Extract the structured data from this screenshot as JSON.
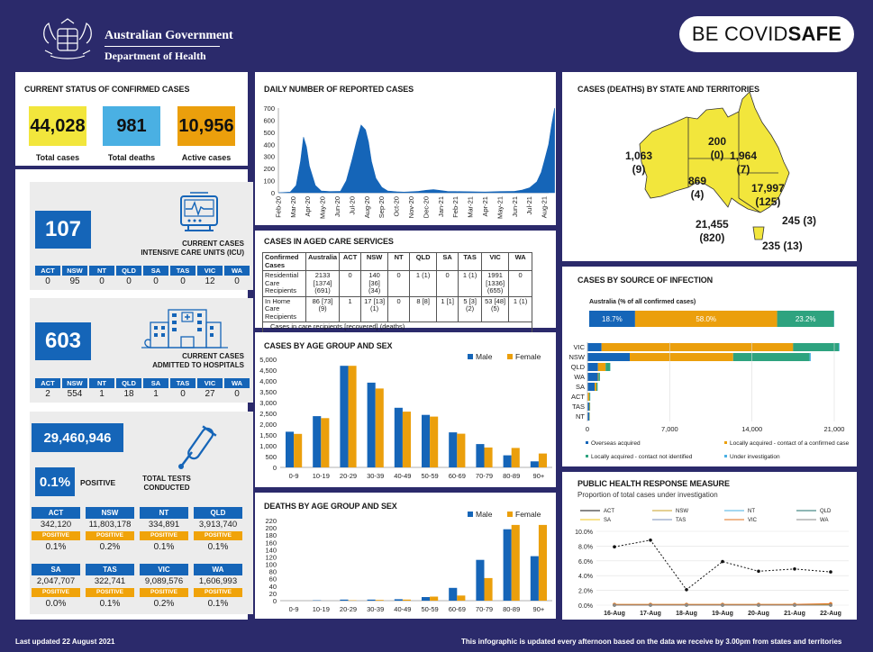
{
  "header": {
    "gov_line1": "Australian Government",
    "gov_line2": "Department of Health",
    "covidsafe_be": "BE COVID",
    "covidsafe_safe": "SAFE"
  },
  "colors": {
    "blue": "#1565b8",
    "orange": "#eb9f0c",
    "yellow": "#f2e63c",
    "lightblue": "#4ab0e3",
    "green": "#2ea37f",
    "navy": "#2b2a6b"
  },
  "status": {
    "title": "CURRENT STATUS OF CONFIRMED CASES",
    "total_cases": "44,028",
    "total_cases_label": "Total cases",
    "total_deaths": "981",
    "total_deaths_label": "Total deaths",
    "active_cases": "10,956",
    "active_cases_label": "Active cases"
  },
  "icu": {
    "value": "107",
    "caption1": "CURRENT CASES",
    "caption2": "INTENSIVE CARE UNITS (ICU)",
    "states": [
      "ACT",
      "NSW",
      "NT",
      "QLD",
      "SA",
      "TAS",
      "VIC",
      "WA"
    ],
    "values": [
      "0",
      "95",
      "0",
      "0",
      "0",
      "0",
      "12",
      "0"
    ]
  },
  "hospital": {
    "value": "603",
    "caption1": "CURRENT CASES",
    "caption2": "ADMITTED TO HOSPITALS",
    "states": [
      "ACT",
      "NSW",
      "NT",
      "QLD",
      "SA",
      "TAS",
      "VIC",
      "WA"
    ],
    "values": [
      "2",
      "554",
      "1",
      "18",
      "1",
      "0",
      "27",
      "0"
    ]
  },
  "tests": {
    "value": "29,460,946",
    "positive_pct": "0.1%",
    "positive_label": "POSITIVE",
    "caption1": "TOTAL TESTS",
    "caption2": "CONDUCTED",
    "badge": "POSITIVE",
    "row1": [
      {
        "state": "ACT",
        "tests": "342,120",
        "pct": "0.1%"
      },
      {
        "state": "NSW",
        "tests": "11,803,178",
        "pct": "0.2%"
      },
      {
        "state": "NT",
        "tests": "334,891",
        "pct": "0.1%"
      },
      {
        "state": "QLD",
        "tests": "3,913,740",
        "pct": "0.1%"
      }
    ],
    "row2": [
      {
        "state": "SA",
        "tests": "2,047,707",
        "pct": "0.0%"
      },
      {
        "state": "TAS",
        "tests": "322,741",
        "pct": "0.1%"
      },
      {
        "state": "VIC",
        "tests": "9,089,576",
        "pct": "0.2%"
      },
      {
        "state": "WA",
        "tests": "1,606,993",
        "pct": "0.1%"
      }
    ]
  },
  "aged_care": {
    "title": "CASES IN AGED CARE SERVICES",
    "headers": [
      "Confirmed Cases",
      "Australia",
      "ACT",
      "NSW",
      "NT",
      "QLD",
      "SA",
      "TAS",
      "VIC",
      "WA"
    ],
    "rows": [
      [
        "Residential Care Recipients",
        "2133 [1374] (691)",
        "0",
        "140 [36] (34)",
        "0",
        "1 (1)",
        "0",
        "1 (1)",
        "1991 [1336] (655)",
        "0"
      ],
      [
        "In Home Care Recipients",
        "86 [73] (9)",
        "1",
        "17 [13] (1)",
        "0",
        "8 [8]",
        "1 [1]",
        "5 [3] (2)",
        "53 [48] (5)",
        "1 (1)"
      ]
    ],
    "note": "Cases in care recipients [recovered] (deaths)"
  },
  "footer": {
    "updated": "Last updated 22 August 2021",
    "note": "This infographic is updated every afternoon based on the data we receive by 3.00pm from states and territories"
  },
  "chart_data": [
    {
      "id": "daily",
      "type": "area",
      "title": "DAILY NUMBER OF REPORTED CASES",
      "ylim": [
        0,
        700
      ],
      "yticks": [
        0,
        100,
        200,
        300,
        400,
        500,
        600,
        700
      ],
      "xticklabels": [
        "Feb-20",
        "Mar-20",
        "Apr-20",
        "May-20",
        "Jun-20",
        "Jul-20",
        "Aug-20",
        "Sep-20",
        "Oct-20",
        "Nov-20",
        "Dec-20",
        "Jan-21",
        "Feb-21",
        "Mar-21",
        "Apr-21",
        "May-21",
        "Jun-21",
        "Jul-21",
        "Aug-21"
      ],
      "x": [
        0,
        0.8,
        1.2,
        1.5,
        1.7,
        1.9,
        2.1,
        2.5,
        2.9,
        3.5,
        4.2,
        4.6,
        5.0,
        5.3,
        5.6,
        5.9,
        6.1,
        6.3,
        6.6,
        7.0,
        7.4,
        8.0,
        8.5,
        9.0,
        9.5,
        10.0,
        10.5,
        11.0,
        11.5,
        12.0,
        13.0,
        14.0,
        15.0,
        16.0,
        16.5,
        17.0,
        17.5,
        17.8,
        18.0,
        18.3,
        18.5,
        18.7
      ],
      "values": [
        0,
        5,
        60,
        260,
        460,
        380,
        220,
        60,
        15,
        10,
        12,
        100,
        280,
        430,
        560,
        520,
        420,
        260,
        120,
        45,
        15,
        8,
        5,
        8,
        12,
        20,
        25,
        18,
        10,
        10,
        8,
        6,
        10,
        12,
        22,
        40,
        90,
        170,
        260,
        400,
        560,
        700
      ]
    },
    {
      "id": "age_cases",
      "type": "bar",
      "title": "CASES BY AGE GROUP AND SEX",
      "categories": [
        "0-9",
        "10-19",
        "20-29",
        "30-39",
        "40-49",
        "50-59",
        "60-69",
        "70-79",
        "80-89",
        "90+"
      ],
      "series": [
        {
          "name": "Male",
          "values": [
            1650,
            2370,
            4700,
            3920,
            2760,
            2430,
            1620,
            1080,
            560,
            280
          ]
        },
        {
          "name": "Female",
          "values": [
            1550,
            2280,
            4700,
            3650,
            2580,
            2350,
            1560,
            920,
            900,
            640
          ]
        }
      ],
      "ylim": [
        0,
        5000
      ],
      "yticks": [
        "0",
        "500",
        "1,000",
        "1,500",
        "2,000",
        "2,500",
        "3,000",
        "3,500",
        "4,000",
        "4,500",
        "5,000"
      ]
    },
    {
      "id": "age_deaths",
      "type": "bar",
      "title": "DEATHS BY AGE GROUP AND SEX",
      "categories": [
        "0-9",
        "10-19",
        "20-29",
        "30-39",
        "40-49",
        "50-59",
        "60-69",
        "70-79",
        "80-89",
        "90+"
      ],
      "series": [
        {
          "name": "Male",
          "values": [
            0,
            1,
            3,
            3,
            4,
            10,
            35,
            112,
            196,
            122
          ]
        },
        {
          "name": "Female",
          "values": [
            0,
            0,
            1,
            2,
            3,
            11,
            14,
            62,
            208,
            208
          ]
        }
      ],
      "ylim": [
        0,
        220
      ],
      "yticks": [
        "0",
        "20",
        "40",
        "60",
        "80",
        "100",
        "120",
        "140",
        "160",
        "180",
        "200",
        "220"
      ]
    },
    {
      "id": "map",
      "type": "table",
      "title": "CASES (DEATHS) BY STATE AND TERRITORIES",
      "labels": [
        {
          "state": "WA",
          "cases": "1,063",
          "deaths": "(9)"
        },
        {
          "state": "NT",
          "cases": "200",
          "deaths": "(0)"
        },
        {
          "state": "QLD",
          "cases": "1,964",
          "deaths": "(7)"
        },
        {
          "state": "SA",
          "cases": "869",
          "deaths": "(4)"
        },
        {
          "state": "NSW",
          "cases": "17,997",
          "deaths": "(125)"
        },
        {
          "state": "ACT",
          "cases": "245",
          "deaths": "(3)"
        },
        {
          "state": "VIC",
          "cases": "21,455",
          "deaths": "(820)"
        },
        {
          "state": "TAS",
          "cases": "235",
          "deaths": "(13)"
        }
      ]
    },
    {
      "id": "source",
      "type": "bar",
      "title": "CASES BY SOURCE OF INFECTION",
      "subtitle": "Australia (% of all confirmed cases)",
      "australia_pct": [
        {
          "name": "Overseas acquired",
          "pct": 18.7,
          "label": "18.7%"
        },
        {
          "name": "Locally acquired - contact of a confirmed case",
          "pct": 58.0,
          "label": "58.0%"
        },
        {
          "name": "Locally acquired - contact not identified",
          "pct": 23.2,
          "label": "23.2%"
        },
        {
          "name": "Under investigation",
          "pct": 0.1,
          "label": ""
        }
      ],
      "categories": [
        "VIC",
        "NSW",
        "QLD",
        "WA",
        "SA",
        "ACT",
        "TAS",
        "NT"
      ],
      "series": [
        {
          "name": "Overseas acquired",
          "values": [
            1200,
            3600,
            900,
            880,
            620,
            40,
            150,
            150
          ]
        },
        {
          "name": "Locally acquired - contact of a confirmed case",
          "values": [
            16300,
            8800,
            650,
            60,
            150,
            130,
            50,
            30
          ]
        },
        {
          "name": "Locally acquired - contact not identified",
          "values": [
            3900,
            6500,
            400,
            120,
            100,
            70,
            30,
            20
          ]
        },
        {
          "name": "Under investigation",
          "values": [
            50,
            100,
            10,
            3,
            0,
            5,
            5,
            0
          ]
        }
      ],
      "xlim": [
        0,
        21000
      ],
      "xticks": [
        "0",
        "7,000",
        "14,000",
        "21,000"
      ]
    },
    {
      "id": "phrm",
      "type": "line",
      "title": "PUBLIC HEALTH RESPONSE MEASURE",
      "subtitle": "Proportion of total cases under investigation",
      "x": [
        "16-Aug",
        "17-Aug",
        "18-Aug",
        "19-Aug",
        "20-Aug",
        "21-Aug",
        "22-Aug"
      ],
      "ylim": [
        0,
        10
      ],
      "yticks": [
        "0.0%",
        "2.0%",
        "4.0%",
        "6.0%",
        "8.0%",
        "10.0%"
      ],
      "series": [
        {
          "name": "ACT",
          "color": "#111111",
          "values": [
            7.9,
            8.8,
            2.1,
            5.9,
            4.6,
            4.9,
            4.5
          ]
        },
        {
          "name": "NSW",
          "color": "#c9a227",
          "values": [
            0.1,
            0.1,
            0.1,
            0.1,
            0.1,
            0.1,
            0.1
          ]
        },
        {
          "name": "NT",
          "color": "#4ab0e3",
          "values": [
            0,
            0,
            0,
            0,
            0,
            0,
            0
          ]
        },
        {
          "name": "QLD",
          "color": "#1f6f6b",
          "values": [
            0,
            0,
            0,
            0,
            0,
            0,
            0
          ]
        },
        {
          "name": "SA",
          "color": "#f0c419",
          "values": [
            0,
            0,
            0,
            0,
            0,
            0,
            0
          ]
        },
        {
          "name": "TAS",
          "color": "#7a8fb8",
          "values": [
            0,
            0,
            0,
            0,
            0,
            0,
            0
          ]
        },
        {
          "name": "VIC",
          "color": "#e0701c",
          "values": [
            0.1,
            0.1,
            0.1,
            0.1,
            0.1,
            0.1,
            0.2
          ]
        },
        {
          "name": "WA",
          "color": "#8a8a8a",
          "values": [
            0,
            0,
            0,
            0,
            0,
            0,
            0
          ]
        }
      ]
    }
  ]
}
